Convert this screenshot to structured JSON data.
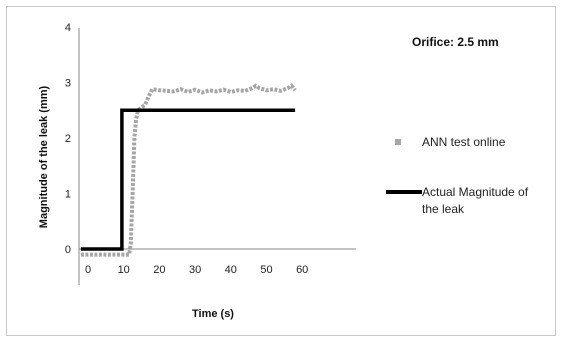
{
  "chart_data": {
    "type": "line",
    "annotation": "Orifice: 2.5 mm",
    "xlabel": "Time (s)",
    "ylabel": "Magnitude of the leak (mm)",
    "xlim": [
      -2,
      60
    ],
    "ylim": [
      -0.2,
      4
    ],
    "x_ticks": [
      0,
      10,
      20,
      30,
      40,
      50,
      60
    ],
    "y_ticks": [
      0,
      1,
      2,
      3,
      4
    ],
    "grid": false,
    "legend_position": "right",
    "series": [
      {
        "name": "ANN test online",
        "style": "dotted",
        "color": "#a6a6a6",
        "x": [
          -2,
          0,
          2,
          4,
          6,
          8,
          10,
          11.5,
          12,
          12.5,
          13,
          13.5,
          14,
          15,
          16,
          17,
          18,
          19,
          20,
          22,
          24,
          26,
          28,
          30,
          32,
          34,
          36,
          38,
          40,
          42,
          44,
          46,
          47,
          48,
          50,
          52,
          54,
          56,
          57,
          58
        ],
        "y": [
          -0.1,
          -0.1,
          -0.1,
          -0.1,
          -0.1,
          -0.1,
          -0.1,
          -0.1,
          0.1,
          1.0,
          2.0,
          2.35,
          2.5,
          2.55,
          2.6,
          2.75,
          2.88,
          2.87,
          2.86,
          2.85,
          2.84,
          2.88,
          2.83,
          2.87,
          2.82,
          2.86,
          2.84,
          2.87,
          2.83,
          2.86,
          2.85,
          2.9,
          2.94,
          2.9,
          2.86,
          2.88,
          2.85,
          2.9,
          2.94,
          2.86
        ]
      },
      {
        "name": "Actual Magnitude of the leak",
        "style": "solid",
        "color": "#000000",
        "x": [
          -2,
          9.5,
          9.5,
          58
        ],
        "y": [
          0,
          0,
          2.5,
          2.5
        ]
      }
    ]
  }
}
